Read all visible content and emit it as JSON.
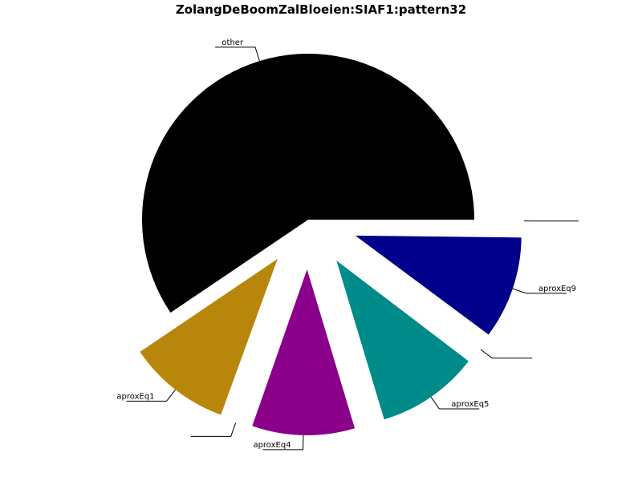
{
  "chart_data": {
    "type": "pie",
    "title": "ZolangDeBoomZalBloeien:SIAF1:pattern32",
    "start_angle_deg": 0,
    "direction": "clockwise",
    "slices": [
      {
        "label": "",
        "value": 0.2,
        "color": "#ffffff",
        "exploded": true
      },
      {
        "label": "aproxEq9",
        "value": 10.5,
        "color": "#00008b",
        "exploded": true
      },
      {
        "label": "",
        "value": 0.2,
        "color": "#ffffff",
        "exploded": true
      },
      {
        "label": "aproxEq5",
        "value": 10.5,
        "color": "#008b8b",
        "exploded": true
      },
      {
        "label": "aproxEq4",
        "value": 10.5,
        "color": "#8b008b",
        "exploded": true
      },
      {
        "label": "",
        "value": 0.2,
        "color": "#ffffff",
        "exploded": true
      },
      {
        "label": "aproxEq1",
        "value": 10.5,
        "color": "#b8860b",
        "exploded": true
      },
      {
        "label": "other",
        "value": 62.5,
        "color": "#000000",
        "exploded": false
      }
    ]
  }
}
